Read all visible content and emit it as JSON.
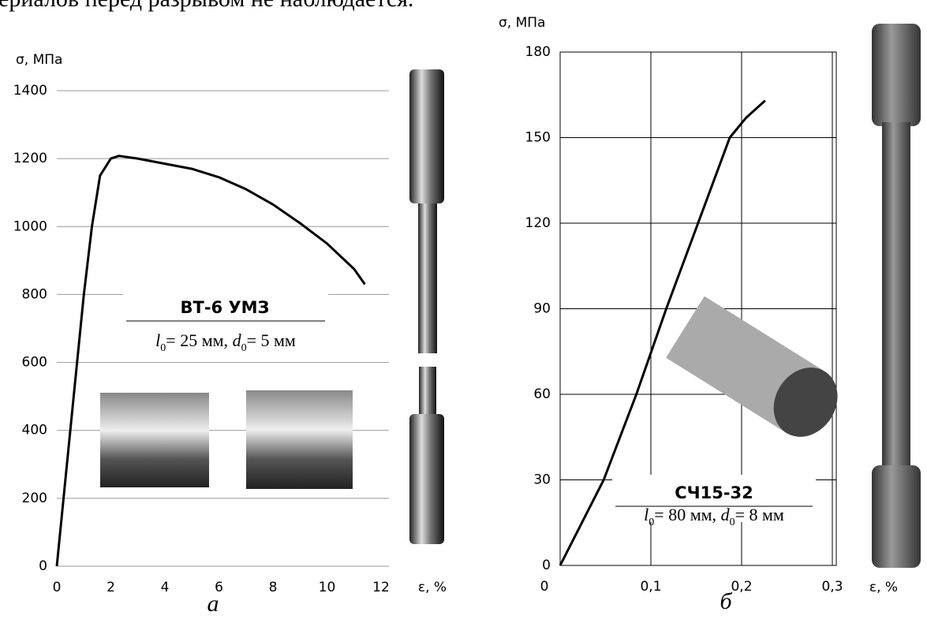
{
  "top_text": "ериалов перед разрывом не наблюдается.",
  "chart_data": [
    {
      "type": "line",
      "y_label": "σ, МПа",
      "x_label": "ε, %",
      "panel_label": "а",
      "grid": "y",
      "xlim": [
        0,
        12
      ],
      "ylim": [
        0,
        1400
      ],
      "xticks": [
        0,
        2,
        4,
        6,
        8,
        10,
        12
      ],
      "yticks": [
        0,
        200,
        400,
        600,
        800,
        1000,
        1200,
        1400
      ],
      "series": [
        {
          "color": "#000000",
          "x": [
            0,
            0.5,
            1,
            1.3,
            1.6,
            2,
            2.3,
            3,
            4,
            5,
            6,
            7,
            8,
            9,
            10,
            11,
            11.4
          ],
          "values": [
            0,
            400,
            800,
            1000,
            1150,
            1200,
            1208,
            1200,
            1185,
            1170,
            1145,
            1110,
            1065,
            1010,
            950,
            875,
            830
          ]
        }
      ],
      "annotation": {
        "title": "ВТ-6 УМЗ",
        "params": [
          "l",
          "0",
          "= 25 мм, ",
          "d",
          "0",
          "= 5 мм"
        ]
      }
    },
    {
      "type": "line",
      "y_label": "σ, МПа",
      "x_label": "ε, %",
      "panel_label": "б",
      "grid": "both",
      "xlim": [
        0,
        0.3
      ],
      "ylim": [
        0,
        180
      ],
      "xticks": [
        0,
        {
          "value": 0.1,
          "label": "0,1"
        },
        {
          "value": 0.2,
          "label": "0,2"
        },
        {
          "value": 0.3,
          "label": "0,3"
        }
      ],
      "yticks": [
        0,
        30,
        60,
        90,
        120,
        150,
        180
      ],
      "series": [
        {
          "color": "#000000",
          "x": [
            0,
            0.048,
            0.084,
            0.117,
            0.152,
            0.187,
            0.205,
            0.226
          ],
          "values": [
            0,
            30,
            60,
            90,
            120,
            150,
            157,
            163
          ]
        }
      ],
      "annotation": {
        "title": "СЧ15-32",
        "params": [
          "l",
          "0",
          "= 80 мм, ",
          "d",
          "0",
          "= 8 мм"
        ]
      }
    }
  ]
}
